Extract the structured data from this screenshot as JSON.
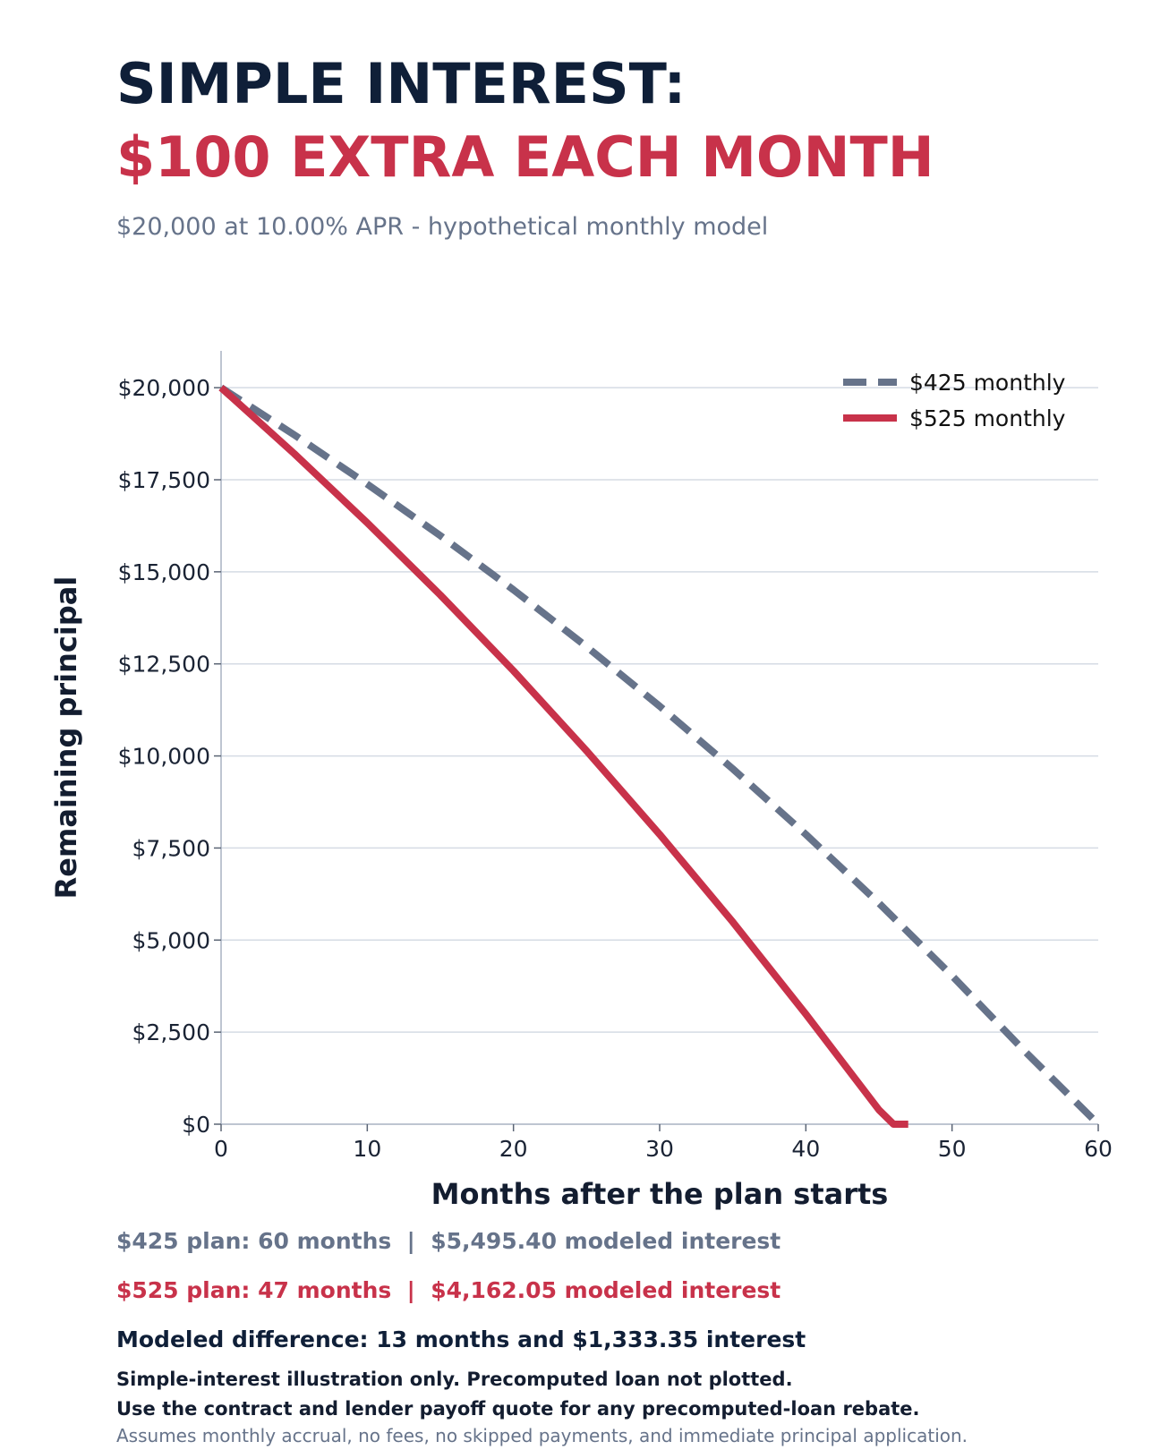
{
  "header": {
    "title_line1": "SIMPLE INTEREST:",
    "title_line2": "$100 EXTRA EACH MONTH",
    "subtitle": "$20,000 at 10.00% APR - hypothetical monthly model"
  },
  "colors": {
    "series_425": "#66738a",
    "series_525": "#c8324a",
    "title_dark": "#0f1f38",
    "grid": "#d5dbe4"
  },
  "chart_data": {
    "type": "line",
    "xlabel": "Months after the plan starts",
    "ylabel": "Remaining principal",
    "xlim": [
      0,
      60
    ],
    "ylim": [
      0,
      21000
    ],
    "x_ticks": [
      0,
      10,
      20,
      30,
      40,
      50,
      60
    ],
    "x_tick_labels": [
      "0",
      "10",
      "20",
      "30",
      "40",
      "50",
      "60"
    ],
    "y_ticks": [
      0,
      2500,
      5000,
      7500,
      10000,
      12500,
      15000,
      17500,
      20000
    ],
    "y_tick_labels": [
      "$0",
      "$2,500",
      "$5,000",
      "$7,500",
      "$10,000",
      "$12,500",
      "$15,000",
      "$17,500",
      "$20,000"
    ],
    "grid": "horizontal",
    "legend_position": "top-right",
    "series": [
      {
        "name": "$425 monthly",
        "style": "dashed",
        "x": [
          0,
          5,
          10,
          15,
          20,
          25,
          30,
          35,
          40,
          45,
          50,
          55,
          60
        ],
        "y": [
          20000,
          18720,
          17380,
          15980,
          14510,
          12970,
          11350,
          9650,
          7870,
          6000,
          4030,
          1970,
          0
        ]
      },
      {
        "name": "$525 monthly",
        "style": "solid",
        "x": [
          0,
          5,
          10,
          15,
          20,
          25,
          30,
          35,
          40,
          45,
          46,
          47
        ],
        "y": [
          20000,
          18210,
          16330,
          14370,
          12310,
          10140,
          7870,
          5490,
          2990,
          390,
          0,
          0
        ]
      }
    ]
  },
  "notes": {
    "line1": "$425 plan: 60 months  |  $5,495.40 modeled interest",
    "line2": "$525 plan: 47 months  |  $4,162.05 modeled interest",
    "line3": "Modeled difference: 13 months and $1,333.35 interest",
    "line4": "Simple-interest illustration only. Precomputed loan not plotted.",
    "line5": "Use the contract and lender payoff quote for any precomputed-loan rebate.",
    "line6": "Assumes monthly accrual, no fees, no skipped payments, and immediate principal application."
  }
}
